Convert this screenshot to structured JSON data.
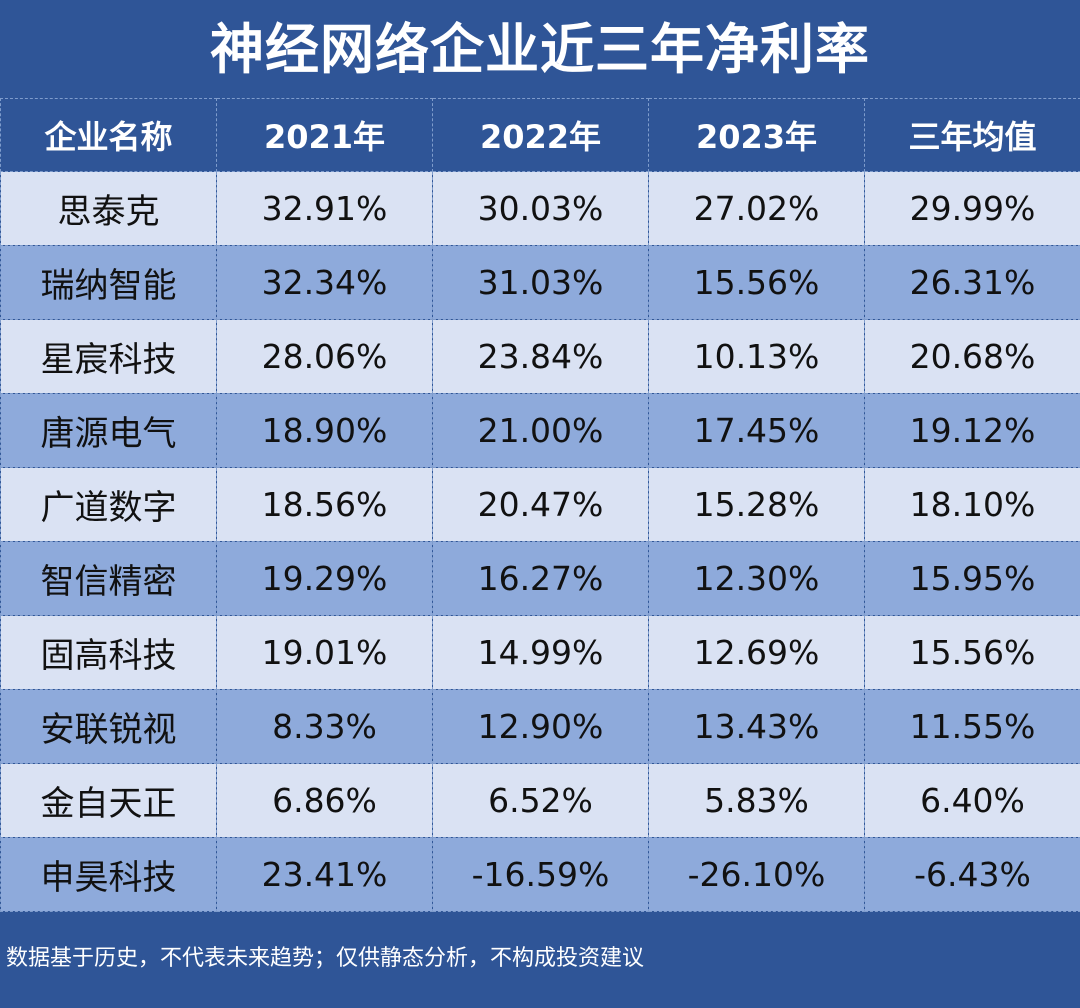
{
  "chart_data": {
    "type": "table",
    "title": "神经网络企业近三年净利率",
    "columns": [
      "企业名称",
      "2021年",
      "2022年",
      "2023年",
      "三年均值"
    ],
    "rows": [
      [
        "思泰克",
        "32.91%",
        "30.03%",
        "27.02%",
        "29.99%"
      ],
      [
        "瑞纳智能",
        "32.34%",
        "31.03%",
        "15.56%",
        "26.31%"
      ],
      [
        "星宸科技",
        "28.06%",
        "23.84%",
        "10.13%",
        "20.68%"
      ],
      [
        "唐源电气",
        "18.90%",
        "21.00%",
        "17.45%",
        "19.12%"
      ],
      [
        "广道数字",
        "18.56%",
        "20.47%",
        "15.28%",
        "18.10%"
      ],
      [
        "智信精密",
        "19.29%",
        "16.27%",
        "12.30%",
        "15.95%"
      ],
      [
        "固高科技",
        "19.01%",
        "14.99%",
        "12.69%",
        "15.56%"
      ],
      [
        "安联锐视",
        "8.33%",
        "12.90%",
        "13.43%",
        "11.55%"
      ],
      [
        "金自天正",
        "6.86%",
        "6.52%",
        "5.83%",
        "6.40%"
      ],
      [
        "申昊科技",
        "23.41%",
        "-16.59%",
        "-26.10%",
        "-6.43%"
      ]
    ],
    "footnote": "数据基于历史，不代表未来趋势；仅供静态分析，不构成投资建议"
  },
  "colors": {
    "header_bg": "#2f5597",
    "row_light": "#dae2f3",
    "row_dark": "#8eaadb",
    "text_light": "#ffffff",
    "text_dark": "#111111"
  }
}
